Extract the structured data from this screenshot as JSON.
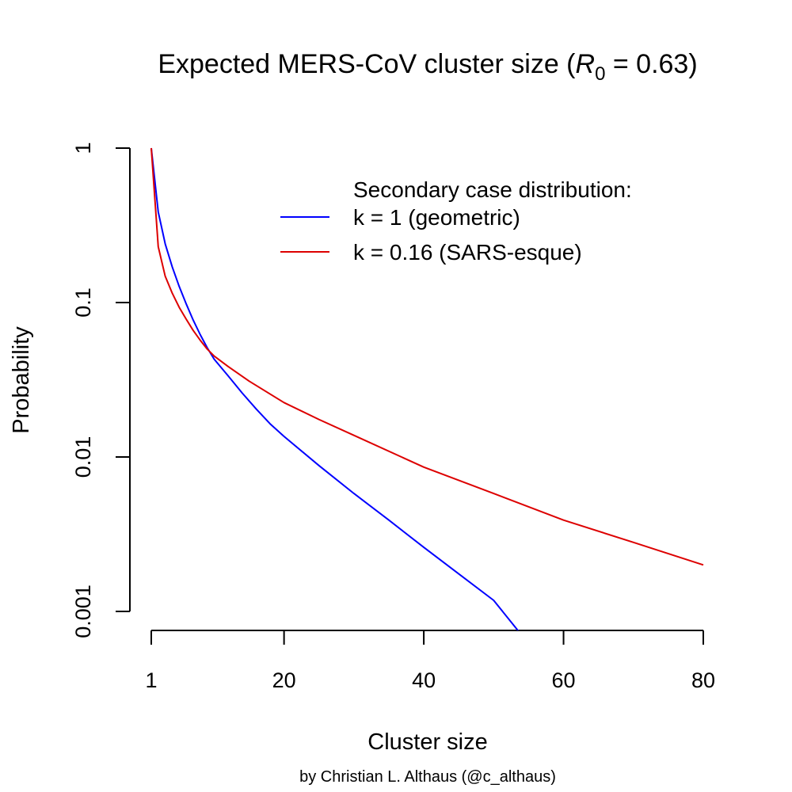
{
  "chart_data": {
    "type": "line",
    "title": {
      "main": "Expected MERS-CoV cluster size (",
      "r_symbol": "R",
      "r_subscript": "0",
      "rest": " = 0.63)"
    },
    "xlabel": "Cluster size",
    "ylabel": "Probability",
    "xlim": [
      1,
      80
    ],
    "ylim": [
      0.001,
      1
    ],
    "yscale": "log",
    "x_ticks": [
      1,
      20,
      40,
      60,
      80
    ],
    "x_tick_labels": [
      "1",
      "20",
      "40",
      "60",
      "80"
    ],
    "y_ticks": [
      0.001,
      0.01,
      0.1,
      1
    ],
    "y_tick_labels": [
      "0.001",
      "0.01",
      "0.1",
      "1"
    ],
    "legend": {
      "title": "Secondary case distribution:",
      "position": "top-right"
    },
    "series": [
      {
        "name": "k = 1 (geometric)",
        "color": "#0000ff",
        "x": [
          1,
          2,
          3,
          4,
          5,
          6,
          7,
          8,
          9,
          10,
          12,
          14,
          16,
          18,
          20,
          25,
          30,
          35,
          40,
          45,
          50,
          53.5
        ],
        "y": [
          1,
          0.386,
          0.24,
          0.17,
          0.127,
          0.098,
          0.077,
          0.062,
          0.051,
          0.043,
          0.0335,
          0.026,
          0.0205,
          0.0164,
          0.0136,
          0.0088,
          0.0058,
          0.0039,
          0.0026,
          0.00175,
          0.00118,
          0.00075
        ]
      },
      {
        "name": "k = 0.16 (SARS-esque)",
        "color": "#dd0000",
        "x": [
          1,
          2,
          3,
          4,
          5,
          6,
          7,
          8,
          9,
          10,
          12,
          15,
          20,
          25,
          30,
          40,
          50,
          60,
          70,
          80
        ],
        "y": [
          1,
          0.23,
          0.148,
          0.115,
          0.093,
          0.078,
          0.066,
          0.057,
          0.05,
          0.045,
          0.0385,
          0.031,
          0.0225,
          0.0175,
          0.0138,
          0.0086,
          0.0058,
          0.0039,
          0.0028,
          0.002
        ]
      }
    ]
  },
  "credit": "by Christian L. Althaus (@c_althaus)"
}
